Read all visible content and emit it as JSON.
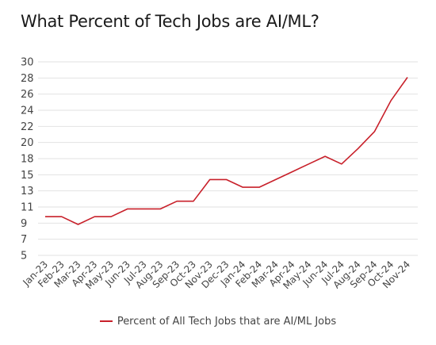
{
  "chart_data": {
    "type": "line",
    "title": "What Percent of Tech Jobs are AI/ML?",
    "xlabel": "",
    "ylabel": "",
    "categories": [
      "Jan-23",
      "Feb-23",
      "Mar-23",
      "Apr-23",
      "May-23",
      "Jun-23",
      "Jul-23",
      "Aug-23",
      "Sep-23",
      "Oct-23",
      "Nov-23",
      "Dec-23",
      "Jan-24",
      "Feb-24",
      "Mar-24",
      "Apr-24",
      "May-24",
      "Jun-24",
      "Jul-24",
      "Aug-24",
      "Sep-24",
      "Oct-24",
      "Nov-24"
    ],
    "ylim": [
      5,
      30
    ],
    "yticks": [
      "30",
      "28",
      "26",
      "24",
      "22",
      "20",
      "18",
      "15",
      "13",
      "11",
      "9",
      "7",
      "5"
    ],
    "grid": "horizontal",
    "legend_position": "bottom",
    "series": [
      {
        "name": "Percent of All Tech Jobs that are AI/ML Jobs",
        "color": "#c8202a",
        "values": [
          10.0,
          10.0,
          9.0,
          10.0,
          10.0,
          11.0,
          11.0,
          11.0,
          12.0,
          12.0,
          14.8,
          14.8,
          13.8,
          13.8,
          14.8,
          15.8,
          16.8,
          17.8,
          16.8,
          18.8,
          21.0,
          25.0,
          28.0
        ]
      }
    ]
  }
}
